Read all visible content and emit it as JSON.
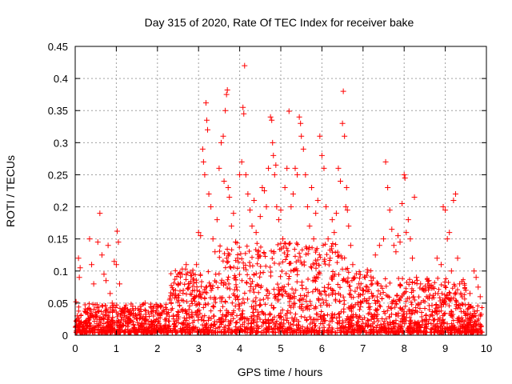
{
  "chart_data": {
    "type": "scatter",
    "title": "Day 315 of 2020, Rate Of TEC Index for receiver bake",
    "xlabel": "GPS time / hours",
    "ylabel": "ROTI / TECUs",
    "xlim": [
      0,
      10
    ],
    "ylim": [
      0,
      0.45
    ],
    "x_ticks": [
      "0",
      "1",
      "2",
      "3",
      "4",
      "5",
      "6",
      "7",
      "8",
      "9",
      "10"
    ],
    "y_ticks": [
      "0",
      "0.05",
      "0.1",
      "0.15",
      "0.2",
      "0.25",
      "0.3",
      "0.35",
      "0.4",
      "0.45"
    ],
    "grid": true,
    "marker": "plus",
    "color": "#ff0000",
    "series": [
      {
        "points": [
          [
            0.02,
            0.052
          ],
          [
            0.05,
            0.03
          ],
          [
            0.08,
            0.12
          ],
          [
            0.1,
            0.09
          ],
          [
            0.12,
            0.105
          ],
          [
            0.15,
            0.02
          ],
          [
            0.35,
            0.15
          ],
          [
            0.4,
            0.11
          ],
          [
            0.45,
            0.08
          ],
          [
            0.55,
            0.145
          ],
          [
            0.6,
            0.19
          ],
          [
            0.65,
            0.125
          ],
          [
            0.7,
            0.095
          ],
          [
            0.75,
            0.085
          ],
          [
            0.8,
            0.14
          ],
          [
            0.85,
            0.065
          ],
          [
            0.9,
            0.05
          ],
          [
            0.95,
            0.115
          ],
          [
            1.0,
            0.11
          ],
          [
            1.02,
            0.162
          ],
          [
            1.05,
            0.145
          ],
          [
            1.08,
            0.08
          ],
          [
            1.15,
            0.04
          ],
          [
            1.4,
            0.045
          ],
          [
            1.6,
            0.04
          ],
          [
            1.7,
            0.05
          ],
          [
            1.9,
            0.042
          ],
          [
            2.1,
            0.045
          ],
          [
            2.3,
            0.055
          ],
          [
            2.4,
            0.065
          ],
          [
            2.5,
            0.08
          ],
          [
            2.6,
            0.095
          ],
          [
            2.7,
            0.11
          ],
          [
            2.75,
            0.08
          ],
          [
            2.9,
            0.07
          ],
          [
            2.95,
            0.11
          ],
          [
            3.0,
            0.16
          ],
          [
            3.05,
            0.155
          ],
          [
            3.1,
            0.29
          ],
          [
            3.12,
            0.27
          ],
          [
            3.15,
            0.25
          ],
          [
            3.18,
            0.362
          ],
          [
            3.2,
            0.335
          ],
          [
            3.22,
            0.32
          ],
          [
            3.25,
            0.22
          ],
          [
            3.3,
            0.2
          ],
          [
            3.35,
            0.15
          ],
          [
            3.4,
            0.13
          ],
          [
            3.45,
            0.18
          ],
          [
            3.5,
            0.26
          ],
          [
            3.55,
            0.3
          ],
          [
            3.6,
            0.31
          ],
          [
            3.62,
            0.24
          ],
          [
            3.65,
            0.35
          ],
          [
            3.68,
            0.375
          ],
          [
            3.7,
            0.382
          ],
          [
            3.72,
            0.23
          ],
          [
            3.75,
            0.215
          ],
          [
            3.8,
            0.17
          ],
          [
            3.85,
            0.19
          ],
          [
            3.9,
            0.145
          ],
          [
            3.95,
            0.12
          ],
          [
            4.0,
            0.25
          ],
          [
            4.05,
            0.27
          ],
          [
            4.08,
            0.355
          ],
          [
            4.1,
            0.345
          ],
          [
            4.12,
            0.42
          ],
          [
            4.15,
            0.25
          ],
          [
            4.2,
            0.22
          ],
          [
            4.25,
            0.195
          ],
          [
            4.3,
            0.17
          ],
          [
            4.35,
            0.21
          ],
          [
            4.4,
            0.16
          ],
          [
            4.45,
            0.12
          ],
          [
            4.5,
            0.185
          ],
          [
            4.55,
            0.23
          ],
          [
            4.6,
            0.225
          ],
          [
            4.65,
            0.2
          ],
          [
            4.7,
            0.26
          ],
          [
            4.75,
            0.34
          ],
          [
            4.78,
            0.335
          ],
          [
            4.8,
            0.3
          ],
          [
            4.82,
            0.28
          ],
          [
            4.85,
            0.25
          ],
          [
            4.88,
            0.265
          ],
          [
            4.9,
            0.2
          ],
          [
            4.95,
            0.18
          ],
          [
            5.0,
            0.195
          ],
          [
            5.05,
            0.15
          ],
          [
            5.1,
            0.23
          ],
          [
            5.15,
            0.26
          ],
          [
            5.2,
            0.349
          ],
          [
            5.25,
            0.2
          ],
          [
            5.3,
            0.22
          ],
          [
            5.35,
            0.26
          ],
          [
            5.4,
            0.25
          ],
          [
            5.45,
            0.34
          ],
          [
            5.48,
            0.33
          ],
          [
            5.5,
            0.31
          ],
          [
            5.55,
            0.29
          ],
          [
            5.6,
            0.25
          ],
          [
            5.65,
            0.2
          ],
          [
            5.7,
            0.17
          ],
          [
            5.75,
            0.23
          ],
          [
            5.8,
            0.15
          ],
          [
            5.85,
            0.19
          ],
          [
            5.9,
            0.21
          ],
          [
            5.95,
            0.31
          ],
          [
            6.0,
            0.28
          ],
          [
            6.05,
            0.26
          ],
          [
            6.1,
            0.2
          ],
          [
            6.15,
            0.15
          ],
          [
            6.2,
            0.12
          ],
          [
            6.25,
            0.18
          ],
          [
            6.3,
            0.16
          ],
          [
            6.35,
            0.19
          ],
          [
            6.4,
            0.26
          ],
          [
            6.45,
            0.24
          ],
          [
            6.5,
            0.33
          ],
          [
            6.52,
            0.38
          ],
          [
            6.55,
            0.31
          ],
          [
            6.58,
            0.2
          ],
          [
            6.6,
            0.23
          ],
          [
            6.62,
            0.195
          ],
          [
            6.65,
            0.17
          ],
          [
            6.7,
            0.14
          ],
          [
            6.75,
            0.11
          ],
          [
            6.8,
            0.09
          ],
          [
            6.9,
            0.08
          ],
          [
            7.0,
            0.07
          ],
          [
            7.05,
            0.09
          ],
          [
            7.1,
            0.075
          ],
          [
            7.2,
            0.085
          ],
          [
            7.3,
            0.125
          ],
          [
            7.4,
            0.14
          ],
          [
            7.5,
            0.15
          ],
          [
            7.55,
            0.27
          ],
          [
            7.6,
            0.23
          ],
          [
            7.65,
            0.195
          ],
          [
            7.7,
            0.165
          ],
          [
            7.75,
            0.14
          ],
          [
            7.8,
            0.13
          ],
          [
            7.85,
            0.155
          ],
          [
            7.9,
            0.145
          ],
          [
            7.95,
            0.205
          ],
          [
            8.0,
            0.25
          ],
          [
            8.02,
            0.245
          ],
          [
            8.05,
            0.16
          ],
          [
            8.1,
            0.18
          ],
          [
            8.15,
            0.15
          ],
          [
            8.2,
            0.12
          ],
          [
            8.25,
            0.215
          ],
          [
            8.3,
            0.09
          ],
          [
            8.4,
            0.08
          ],
          [
            8.5,
            0.07
          ],
          [
            8.6,
            0.085
          ],
          [
            8.7,
            0.075
          ],
          [
            8.8,
            0.12
          ],
          [
            8.9,
            0.11
          ],
          [
            8.95,
            0.2
          ],
          [
            9.0,
            0.195
          ],
          [
            9.05,
            0.15
          ],
          [
            9.1,
            0.16
          ],
          [
            9.15,
            0.1
          ],
          [
            9.2,
            0.21
          ],
          [
            9.25,
            0.22
          ],
          [
            9.3,
            0.12
          ],
          [
            9.35,
            0.08
          ],
          [
            9.5,
            0.07
          ],
          [
            9.6,
            0.065
          ],
          [
            9.7,
            0.1
          ],
          [
            9.75,
            0.09
          ],
          [
            9.8,
            0.075
          ],
          [
            9.85,
            0.06
          ]
        ]
      }
    ]
  }
}
